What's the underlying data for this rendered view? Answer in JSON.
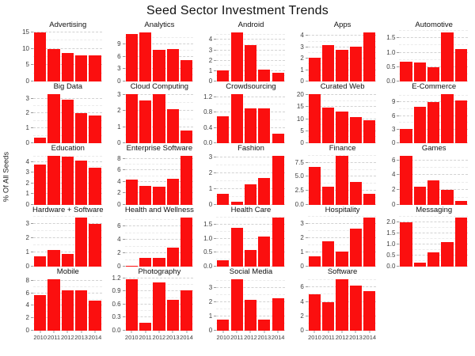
{
  "header": {
    "title": "Seed Sector Investment Trends"
  },
  "colors": {
    "bar": "#fb0f0f",
    "grid_major": "#d2d2d2",
    "grid_minor": "#ebebeb",
    "tick_text": "#3d3d3d"
  },
  "chart_data": {
    "type": "bar",
    "title": "Seed Sector Investment Trends",
    "ylabel": "% Of All Seeds",
    "xlabel": "",
    "legend": "none",
    "grid": "dashed, major + minor, horizontal only",
    "facet_columns": 5,
    "x_axis_shown_on": [
      "Mobile",
      "Photography",
      "Social Media",
      "Software"
    ],
    "categories": [
      "2010",
      "2011",
      "2012",
      "2013",
      "2014"
    ],
    "panels": [
      {
        "title": "Advertising",
        "values": [
          15.0,
          10.0,
          8.8,
          8.0,
          8.0
        ],
        "tick_values": [
          0,
          5,
          10,
          15
        ],
        "tick_labels": [
          "0",
          "5",
          "10",
          "15"
        ]
      },
      {
        "title": "Analytics",
        "values": [
          11.5,
          11.9,
          7.7,
          7.9,
          5.2
        ],
        "tick_values": [
          0,
          3,
          6,
          9
        ],
        "tick_labels": [
          "0",
          "3",
          "6",
          "9"
        ]
      },
      {
        "title": "Android",
        "values": [
          1.05,
          4.7,
          3.5,
          1.15,
          0.8
        ],
        "tick_values": [
          0,
          1,
          2,
          3,
          4
        ],
        "tick_labels": [
          "0",
          "1",
          "2",
          "3",
          "4"
        ]
      },
      {
        "title": "Apps",
        "values": [
          2.1,
          3.2,
          2.75,
          3.05,
          4.3
        ],
        "tick_values": [
          0,
          1,
          2,
          3,
          4
        ],
        "tick_labels": [
          "0",
          "1",
          "2",
          "3",
          "4"
        ]
      },
      {
        "title": "Automotive",
        "values": [
          0.7,
          0.67,
          0.5,
          1.7,
          1.13
        ],
        "tick_values": [
          0,
          0.5,
          1.0,
          1.5
        ],
        "tick_labels": [
          "0.0",
          "0.5",
          "1.0",
          "1.5"
        ]
      },
      {
        "title": "Big Data",
        "values": [
          0.35,
          3.3,
          2.95,
          2.0,
          1.85
        ],
        "tick_values": [
          0,
          1,
          2,
          3
        ],
        "tick_labels": [
          "0",
          "1",
          "2",
          "3"
        ]
      },
      {
        "title": "Cloud Computing",
        "values": [
          3.05,
          2.65,
          3.05,
          2.1,
          0.8
        ],
        "tick_values": [
          0,
          1,
          2,
          3
        ],
        "tick_labels": [
          "0",
          "1",
          "2",
          "3"
        ]
      },
      {
        "title": "Crowdsourcing",
        "values": [
          0.7,
          1.27,
          0.9,
          0.9,
          0.25
        ],
        "tick_values": [
          0,
          0.4,
          0.8,
          1.2
        ],
        "tick_labels": [
          "0.0",
          "0.4",
          "0.8",
          "1.2"
        ]
      },
      {
        "title": "Curated Web",
        "values": [
          20.4,
          14.8,
          13.2,
          11.0,
          9.4
        ],
        "tick_values": [
          0,
          5,
          10,
          15,
          20
        ],
        "tick_labels": [
          "0",
          "5",
          "10",
          "15",
          "20"
        ]
      },
      {
        "title": "E-Commerce",
        "values": [
          3.2,
          8.0,
          9.0,
          10.8,
          9.4
        ],
        "tick_values": [
          0,
          3,
          6,
          9
        ],
        "tick_labels": [
          "0",
          "3",
          "6",
          "9"
        ]
      },
      {
        "title": "Education",
        "values": [
          3.75,
          4.55,
          4.5,
          4.15,
          3.45
        ],
        "tick_values": [
          0,
          1,
          2,
          3,
          4
        ],
        "tick_labels": [
          "0",
          "1",
          "2",
          "3",
          "4"
        ]
      },
      {
        "title": "Enterprise Software",
        "values": [
          4.4,
          3.3,
          3.1,
          4.6,
          8.5
        ],
        "tick_values": [
          0,
          2,
          4,
          6,
          8
        ],
        "tick_labels": [
          "0",
          "2",
          "4",
          "6",
          "8"
        ]
      },
      {
        "title": "Fashion",
        "values": [
          0.7,
          0.2,
          1.3,
          1.7,
          3.1
        ],
        "tick_values": [
          0,
          1,
          2,
          3
        ],
        "tick_labels": [
          "0",
          "1",
          "2",
          "3"
        ]
      },
      {
        "title": "Finance",
        "values": [
          6.8,
          3.2,
          8.7,
          4.1,
          2.0
        ],
        "tick_values": [
          0,
          2.5,
          5.0,
          7.5
        ],
        "tick_labels": [
          "0.0",
          "2.5",
          "5.0",
          "7.5"
        ]
      },
      {
        "title": "Games",
        "values": [
          6.6,
          2.5,
          3.35,
          2.0,
          0.55
        ],
        "tick_values": [
          0,
          2,
          4,
          6
        ],
        "tick_labels": [
          "0",
          "2",
          "4",
          "6"
        ]
      },
      {
        "title": "Hardware + Software",
        "values": [
          0.7,
          1.15,
          0.9,
          3.45,
          3.0
        ],
        "tick_values": [
          0,
          1,
          2,
          3
        ],
        "tick_labels": [
          "0",
          "1",
          "2",
          "3"
        ]
      },
      {
        "title": "Health and Wellness",
        "values": [
          0.1,
          1.3,
          1.35,
          2.8,
          7.3
        ],
        "tick_values": [
          0,
          2,
          4,
          6
        ],
        "tick_labels": [
          "0",
          "2",
          "4",
          "6"
        ]
      },
      {
        "title": "Health Care",
        "values": [
          0.22,
          1.38,
          0.6,
          1.08,
          1.75
        ],
        "tick_values": [
          0,
          0.5,
          1.0,
          1.5
        ],
        "tick_labels": [
          "0.0",
          "0.5",
          "1.0",
          "1.5"
        ]
      },
      {
        "title": "Hospitality",
        "values": [
          0.7,
          1.8,
          1.05,
          2.7,
          3.45
        ],
        "tick_values": [
          0,
          1,
          2,
          3
        ],
        "tick_labels": [
          "0",
          "1",
          "2",
          "3"
        ]
      },
      {
        "title": "Messaging",
        "values": [
          2.0,
          0.18,
          0.65,
          1.12,
          2.2
        ],
        "tick_values": [
          0,
          0.5,
          1.0,
          1.5,
          2.0
        ],
        "tick_labels": [
          "0.0",
          "0.5",
          "1.0",
          "1.5",
          "2.0"
        ]
      },
      {
        "title": "Mobile",
        "values": [
          5.7,
          8.2,
          6.4,
          6.5,
          4.8
        ],
        "tick_values": [
          0,
          2,
          4,
          6,
          8
        ],
        "tick_labels": [
          "0",
          "2",
          "4",
          "6",
          "8"
        ],
        "show_x": true
      },
      {
        "title": "Photography",
        "values": [
          1.17,
          0.18,
          1.1,
          0.7,
          0.92
        ],
        "tick_values": [
          0,
          0.3,
          0.6,
          0.9,
          1.2
        ],
        "tick_labels": [
          "0.0",
          "0.3",
          "0.6",
          "0.9",
          "1.2"
        ],
        "show_x": true
      },
      {
        "title": "Social Media",
        "values": [
          0.8,
          3.6,
          2.15,
          0.78,
          2.3
        ],
        "tick_values": [
          0,
          1,
          2,
          3
        ],
        "tick_labels": [
          "0",
          "1",
          "2",
          "3"
        ],
        "show_x": true
      },
      {
        "title": "Software",
        "values": [
          5.05,
          3.95,
          7.1,
          6.2,
          5.5
        ],
        "tick_values": [
          0,
          2,
          4,
          6
        ],
        "tick_labels": [
          "0",
          "2",
          "4",
          "6"
        ],
        "show_x": true
      }
    ]
  }
}
